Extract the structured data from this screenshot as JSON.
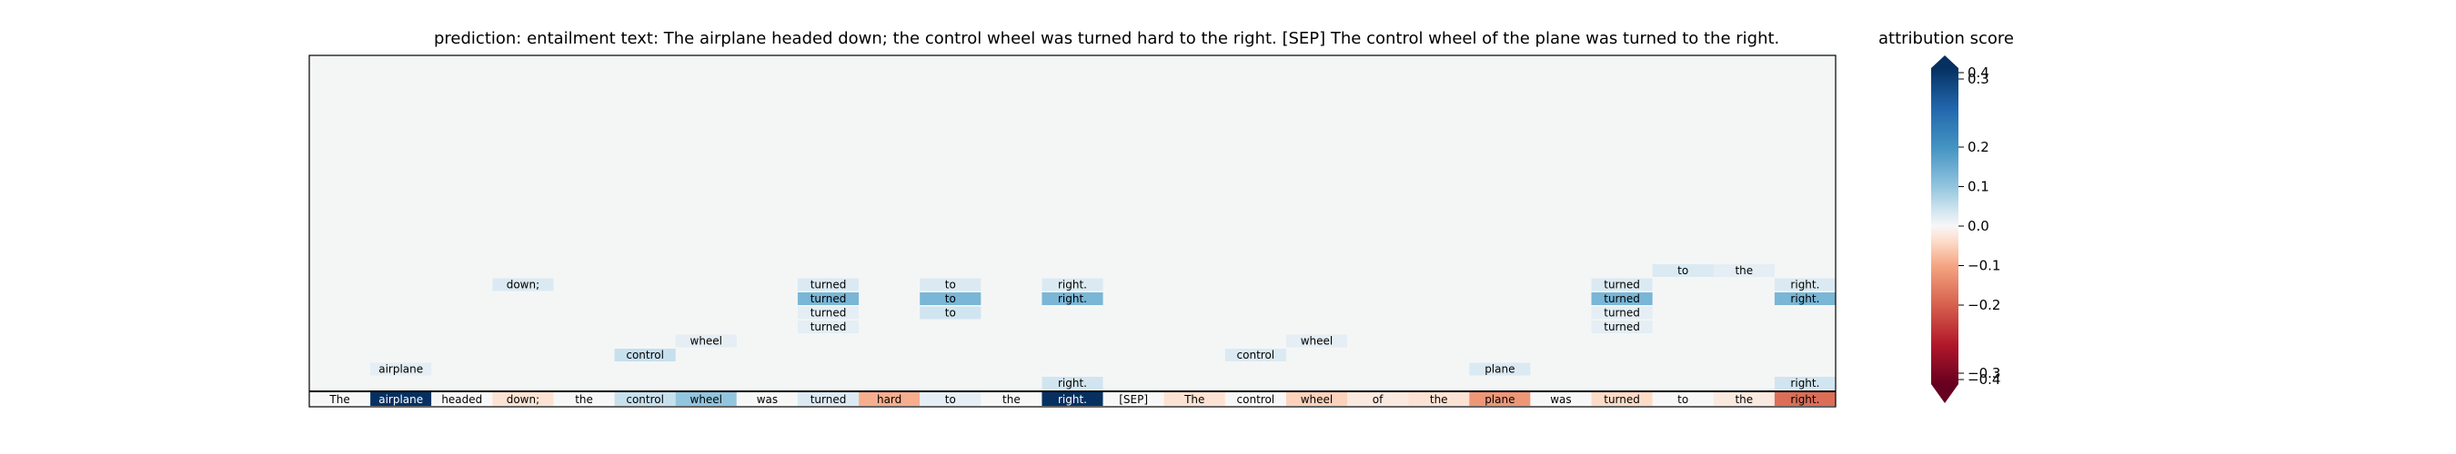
{
  "chart_data": {
    "type": "heatmap",
    "title": "prediction:  entailment     text:  The airplane headed down; the control wheel was turned hard to the right. [SEP] The control wheel of the plane was turned to the right.",
    "colorbar_title": "attribution score",
    "colorbar_range": [
      -0.4,
      0.4
    ],
    "colorbar_ticks": [
      {
        "value": 0.4,
        "label": "0.4"
      },
      {
        "value": 0.3,
        "label": "0.3"
      },
      {
        "value": 0.2,
        "label": "0.2"
      },
      {
        "value": 0.1,
        "label": "0.1"
      },
      {
        "value": 0.0,
        "label": "0.0"
      },
      {
        "value": -0.1,
        "label": "−0.1"
      },
      {
        "value": -0.2,
        "label": "−0.2"
      },
      {
        "value": -0.3,
        "label": "−0.3"
      },
      {
        "value": -0.4,
        "label": "−0.4"
      }
    ],
    "num_columns": 25,
    "tokens": [
      "The",
      "airplane",
      "headed",
      "down;",
      "the",
      "control",
      "wheel",
      "was",
      "turned",
      "hard",
      "to",
      "the",
      "right.",
      "[SEP]",
      "The",
      "control",
      "wheel",
      "of",
      "the",
      "plane",
      "was",
      "turned",
      "to",
      "the",
      "right."
    ],
    "token_scores": [
      0.0,
      0.42,
      0.0,
      -0.03,
      0.0,
      0.05,
      0.1,
      0.0,
      0.03,
      -0.09,
      0.02,
      0.0,
      0.42,
      0.0,
      -0.03,
      0.0,
      -0.05,
      -0.02,
      -0.03,
      -0.12,
      0.0,
      -0.04,
      0.0,
      -0.02,
      -0.18
    ],
    "attention_cells": [
      {
        "col": 1,
        "level": 2,
        "label": "airplane",
        "score": 0.02
      },
      {
        "col": 3,
        "level": 8,
        "label": "down;",
        "score": 0.03
      },
      {
        "col": 5,
        "level": 3,
        "label": "control",
        "score": 0.05
      },
      {
        "col": 6,
        "level": 4,
        "label": "wheel",
        "score": 0.02
      },
      {
        "col": 8,
        "level": 5,
        "label": "turned",
        "score": 0.02
      },
      {
        "col": 8,
        "level": 6,
        "label": "turned",
        "score": 0.02
      },
      {
        "col": 8,
        "level": 7,
        "label": "turned",
        "score": 0.13
      },
      {
        "col": 8,
        "level": 8,
        "label": "turned",
        "score": 0.03
      },
      {
        "col": 10,
        "level": 6,
        "label": "to",
        "score": 0.04
      },
      {
        "col": 10,
        "level": 7,
        "label": "to",
        "score": 0.13
      },
      {
        "col": 10,
        "level": 8,
        "label": "to",
        "score": 0.03
      },
      {
        "col": 12,
        "level": 1,
        "label": "right.",
        "score": 0.04
      },
      {
        "col": 12,
        "level": 7,
        "label": "right.",
        "score": 0.13
      },
      {
        "col": 12,
        "level": 8,
        "label": "right.",
        "score": 0.03
      },
      {
        "col": 15,
        "level": 3,
        "label": "control",
        "score": 0.03
      },
      {
        "col": 16,
        "level": 4,
        "label": "wheel",
        "score": 0.02
      },
      {
        "col": 19,
        "level": 2,
        "label": "plane",
        "score": 0.03
      },
      {
        "col": 21,
        "level": 5,
        "label": "turned",
        "score": 0.02
      },
      {
        "col": 21,
        "level": 6,
        "label": "turned",
        "score": 0.02
      },
      {
        "col": 21,
        "level": 7,
        "label": "turned",
        "score": 0.13
      },
      {
        "col": 21,
        "level": 8,
        "label": "turned",
        "score": 0.03
      },
      {
        "col": 22,
        "level": 9,
        "label": "to",
        "score": 0.03
      },
      {
        "col": 23,
        "level": 9,
        "label": "the",
        "score": 0.02
      },
      {
        "col": 24,
        "level": 1,
        "label": "right.",
        "score": 0.04
      },
      {
        "col": 24,
        "level": 7,
        "label": "right.",
        "score": 0.13
      },
      {
        "col": 24,
        "level": 8,
        "label": "right.",
        "score": 0.03
      }
    ]
  }
}
